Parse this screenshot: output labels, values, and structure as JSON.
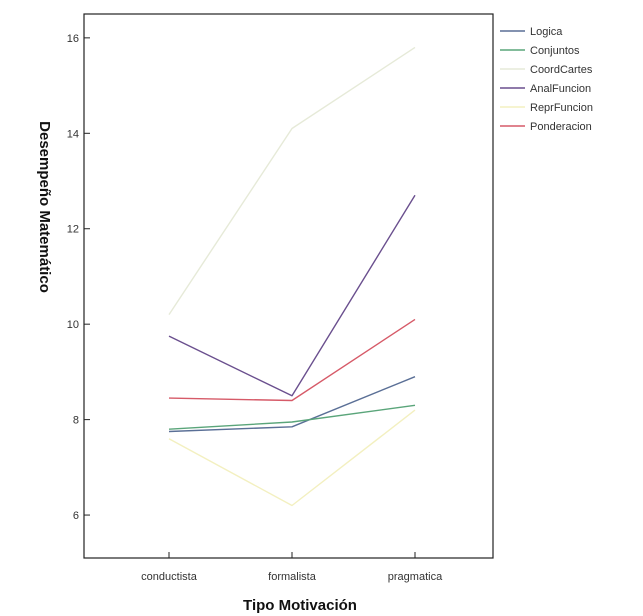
{
  "chart_data": {
    "type": "line",
    "title": "",
    "xlabel": "Tipo Motivación",
    "ylabel": "Desempeño  Matemático",
    "categories": [
      "conductista",
      "formalista",
      "pragmatica"
    ],
    "yticks": [
      6,
      8,
      10,
      12,
      14,
      16
    ],
    "ylim": [
      5.1,
      16.5
    ],
    "grid": false,
    "legend_position": "top-right",
    "series": [
      {
        "name": "Logica",
        "color": "#5a6f96",
        "values": [
          7.75,
          7.85,
          8.9
        ]
      },
      {
        "name": "Conjuntos",
        "color": "#5aa57a",
        "values": [
          7.8,
          7.95,
          8.3
        ]
      },
      {
        "name": "CoordCartes",
        "color": "#e6ead8",
        "values": [
          10.2,
          14.1,
          15.8
        ]
      },
      {
        "name": "AnalFuncion",
        "color": "#6a4f8e",
        "values": [
          9.75,
          8.5,
          12.7
        ]
      },
      {
        "name": "ReprFuncion",
        "color": "#f3f0c0",
        "values": [
          7.6,
          6.2,
          8.2
        ]
      },
      {
        "name": "Ponderacion",
        "color": "#d65a68",
        "values": [
          8.45,
          8.4,
          10.1
        ]
      }
    ]
  }
}
